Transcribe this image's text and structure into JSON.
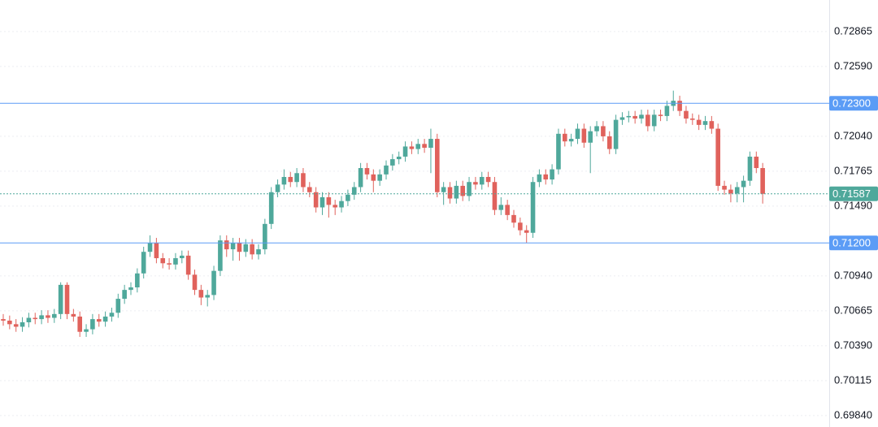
{
  "chart_data": {
    "type": "candlestick",
    "ylim": [
      0.6975,
      0.73114
    ],
    "yticks": [
      {
        "value": 0.72865,
        "label": "0.72865"
      },
      {
        "value": 0.7259,
        "label": "0.72590"
      },
      {
        "value": 0.7204,
        "label": "0.72040"
      },
      {
        "value": 0.71765,
        "label": "0.71765"
      },
      {
        "value": 0.7149,
        "label": "0.71490"
      },
      {
        "value": 0.7094,
        "label": "0.70940"
      },
      {
        "value": 0.70665,
        "label": "0.70665"
      },
      {
        "value": 0.7039,
        "label": "0.70390"
      },
      {
        "value": 0.70115,
        "label": "0.70115"
      },
      {
        "value": 0.6984,
        "label": "0.69840"
      }
    ],
    "grid": true,
    "up_color": "#4fa89b",
    "down_color": "#e0625c",
    "price_lines": [
      {
        "value": 0.723,
        "label": "0.72300",
        "color": "#5b9cf6"
      },
      {
        "value": 0.712,
        "label": "0.71200",
        "color": "#5b9cf6"
      }
    ],
    "last_price": {
      "value": 0.71587,
      "label": "0.71587",
      "color": "#4fa89b"
    },
    "open": [
      0.706,
      0.70588,
      0.7056,
      0.7054,
      0.70575,
      0.7061,
      0.706,
      0.7063,
      0.7061,
      0.7064,
      0.7087,
      0.7064,
      0.7062,
      0.705,
      0.7052,
      0.706,
      0.7058,
      0.7062,
      0.7065,
      0.7076,
      0.7083,
      0.7085,
      0.7096,
      0.7113,
      0.712,
      0.7108,
      0.7104,
      0.7103,
      0.7108,
      0.711,
      0.7095,
      0.7083,
      0.7077,
      0.7079,
      0.7098,
      0.7122,
      0.7115,
      0.712,
      0.7113,
      0.7119,
      0.7111,
      0.7115,
      0.7135,
      0.716,
      0.7166,
      0.7172,
      0.7168,
      0.7175,
      0.7164,
      0.716,
      0.7148,
      0.7156,
      0.715,
      0.7148,
      0.7153,
      0.7158,
      0.7164,
      0.7179,
      0.7174,
      0.7169,
      0.7174,
      0.7181,
      0.7186,
      0.7188,
      0.7196,
      0.7194,
      0.7198,
      0.7195,
      0.7202,
      0.716,
      0.7164,
      0.7155,
      0.7165,
      0.7157,
      0.7168,
      0.7166,
      0.7172,
      0.7168,
      0.7146,
      0.715,
      0.7142,
      0.7136,
      0.713,
      0.7128,
      0.7168,
      0.7174,
      0.717,
      0.7178,
      0.7206,
      0.72,
      0.7202,
      0.721,
      0.7199,
      0.7208,
      0.7212,
      0.7204,
      0.7194,
      0.7217,
      0.7219,
      0.722,
      0.7218,
      0.7221,
      0.7212,
      0.7221,
      0.722,
      0.7228,
      0.7232,
      0.7224,
      0.7218,
      0.7217,
      0.7213,
      0.7216,
      0.721,
      0.7165,
      0.7162,
      0.7159,
      0.7164,
      0.7169,
      0.7188,
      0.7179
    ],
    "high": [
      0.7064,
      0.70628,
      0.706,
      0.70615,
      0.7065,
      0.7065,
      0.7067,
      0.7067,
      0.7068,
      0.7089,
      0.7089,
      0.7068,
      0.7066,
      0.7056,
      0.7064,
      0.7064,
      0.7066,
      0.7069,
      0.708,
      0.7087,
      0.7089,
      0.71,
      0.7117,
      0.7126,
      0.7124,
      0.7112,
      0.7108,
      0.7112,
      0.7114,
      0.7114,
      0.7099,
      0.7087,
      0.7083,
      0.7102,
      0.7126,
      0.7126,
      0.7124,
      0.7124,
      0.7123,
      0.7123,
      0.7119,
      0.7139,
      0.7164,
      0.717,
      0.7178,
      0.7176,
      0.7179,
      0.7179,
      0.7168,
      0.7164,
      0.716,
      0.716,
      0.7154,
      0.7157,
      0.7162,
      0.7168,
      0.7183,
      0.7183,
      0.7178,
      0.7178,
      0.7185,
      0.719,
      0.7192,
      0.72,
      0.72,
      0.7202,
      0.7202,
      0.721,
      0.7206,
      0.7168,
      0.7168,
      0.7169,
      0.7169,
      0.7172,
      0.7172,
      0.7176,
      0.7176,
      0.7172,
      0.7156,
      0.7154,
      0.7146,
      0.714,
      0.7134,
      0.7172,
      0.7178,
      0.7178,
      0.7182,
      0.721,
      0.721,
      0.7206,
      0.7214,
      0.7214,
      0.7212,
      0.7216,
      0.7216,
      0.7208,
      0.7221,
      0.7223,
      0.7224,
      0.7224,
      0.7225,
      0.7225,
      0.7225,
      0.7225,
      0.7232,
      0.724,
      0.7236,
      0.7228,
      0.7222,
      0.7221,
      0.722,
      0.722,
      0.7214,
      0.7169,
      0.7166,
      0.7168,
      0.7173,
      0.7192,
      0.7192,
      0.7183
    ],
    "low": [
      0.70548,
      0.7052,
      0.705,
      0.705,
      0.70535,
      0.7056,
      0.7056,
      0.7057,
      0.7057,
      0.706,
      0.706,
      0.7058,
      0.7046,
      0.7046,
      0.7048,
      0.7054,
      0.7054,
      0.7058,
      0.7061,
      0.7072,
      0.7079,
      0.7081,
      0.7092,
      0.7109,
      0.7104,
      0.71,
      0.7099,
      0.7099,
      0.7104,
      0.7091,
      0.7079,
      0.7071,
      0.707,
      0.7075,
      0.7094,
      0.7109,
      0.7106,
      0.7106,
      0.7109,
      0.7107,
      0.7107,
      0.7111,
      0.7131,
      0.7156,
      0.7162,
      0.7164,
      0.7164,
      0.716,
      0.7156,
      0.7144,
      0.7142,
      0.714,
      0.7142,
      0.7144,
      0.7149,
      0.7154,
      0.716,
      0.717,
      0.716,
      0.7165,
      0.717,
      0.7177,
      0.7182,
      0.7184,
      0.719,
      0.719,
      0.7191,
      0.7175,
      0.7156,
      0.715,
      0.7151,
      0.7151,
      0.7153,
      0.7153,
      0.7162,
      0.7162,
      0.7164,
      0.7142,
      0.7142,
      0.7138,
      0.7132,
      0.7126,
      0.712,
      0.7124,
      0.7164,
      0.7166,
      0.7166,
      0.7174,
      0.7196,
      0.7196,
      0.7198,
      0.7195,
      0.7175,
      0.7204,
      0.72,
      0.719,
      0.719,
      0.7213,
      0.7215,
      0.7214,
      0.7214,
      0.7208,
      0.7208,
      0.7216,
      0.7216,
      0.7224,
      0.722,
      0.7214,
      0.7213,
      0.7209,
      0.7209,
      0.7206,
      0.7161,
      0.7158,
      0.7152,
      0.7152,
      0.7152,
      0.7165,
      0.7175,
      0.7151
    ],
    "close": [
      0.70588,
      0.7056,
      0.7054,
      0.70575,
      0.7061,
      0.706,
      0.7063,
      0.7061,
      0.7064,
      0.7087,
      0.7064,
      0.7062,
      0.705,
      0.7052,
      0.706,
      0.7058,
      0.7062,
      0.7065,
      0.7076,
      0.7083,
      0.7085,
      0.7096,
      0.7113,
      0.712,
      0.7108,
      0.7104,
      0.7103,
      0.7108,
      0.711,
      0.7095,
      0.7083,
      0.7077,
      0.7079,
      0.7098,
      0.7122,
      0.7115,
      0.712,
      0.7113,
      0.7119,
      0.7111,
      0.7115,
      0.7135,
      0.716,
      0.7166,
      0.7172,
      0.7168,
      0.7175,
      0.7164,
      0.716,
      0.7148,
      0.7156,
      0.715,
      0.7148,
      0.7153,
      0.7158,
      0.7164,
      0.7179,
      0.7174,
      0.7169,
      0.7174,
      0.7181,
      0.7186,
      0.7188,
      0.7196,
      0.7194,
      0.7198,
      0.7195,
      0.7202,
      0.716,
      0.7164,
      0.7155,
      0.7165,
      0.7157,
      0.7168,
      0.7166,
      0.7172,
      0.7168,
      0.7146,
      0.715,
      0.7142,
      0.7136,
      0.713,
      0.7128,
      0.7168,
      0.7174,
      0.717,
      0.7178,
      0.7206,
      0.72,
      0.7202,
      0.721,
      0.7199,
      0.7208,
      0.7212,
      0.7204,
      0.7194,
      0.7217,
      0.7219,
      0.722,
      0.7218,
      0.7221,
      0.7212,
      0.7221,
      0.722,
      0.7228,
      0.7232,
      0.7224,
      0.7218,
      0.7217,
      0.7213,
      0.7216,
      0.721,
      0.7165,
      0.7162,
      0.7159,
      0.7164,
      0.7169,
      0.7188,
      0.7179,
      0.71587
    ]
  }
}
